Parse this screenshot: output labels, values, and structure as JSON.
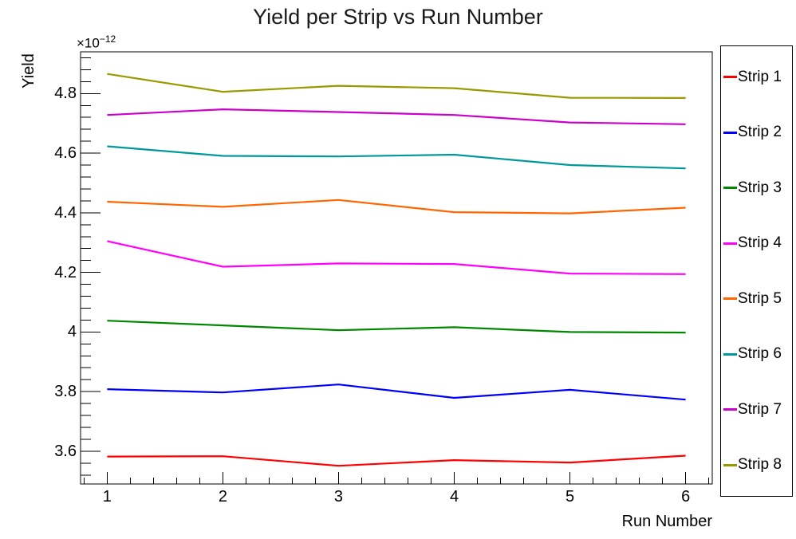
{
  "title": "Yield per Strip vs Run Number",
  "chart_data": {
    "type": "line",
    "title": "Yield per Strip vs Run Number",
    "xlabel": "Run Number",
    "ylabel": "Yield",
    "y_scale_label": {
      "mantissa": "×10",
      "exponent": "−12"
    },
    "grid": false,
    "legend_position": "right-outside",
    "x": [
      1,
      2,
      3,
      4,
      5,
      6
    ],
    "xlim": [
      0.77,
      6.23
    ],
    "ylim": [
      3.49,
      4.94
    ],
    "x_tick_labels": [
      "1",
      "2",
      "3",
      "4",
      "5",
      "6"
    ],
    "y_tick_values": [
      3.6,
      3.8,
      4.0,
      4.2,
      4.4,
      4.6,
      4.8
    ],
    "y_tick_labels": [
      "3.6",
      "3.8",
      "4",
      "4.2",
      "4.4",
      "4.6",
      "4.8"
    ],
    "x_minor_step": 0.2,
    "y_minor_step": 0.04,
    "values_unit": "×10⁻¹²",
    "series": [
      {
        "name": "Strip 1",
        "color": "#ff0000",
        "values": [
          3.582,
          3.583,
          3.551,
          3.57,
          3.562,
          3.585
        ]
      },
      {
        "name": "Strip 2",
        "color": "#0000ff",
        "values": [
          3.808,
          3.797,
          3.824,
          3.779,
          3.806,
          3.773
        ]
      },
      {
        "name": "Strip 3",
        "color": "#008800",
        "values": [
          4.038,
          4.022,
          4.006,
          4.016,
          4.0,
          3.998
        ]
      },
      {
        "name": "Strip 4",
        "color": "#ff00ff",
        "values": [
          4.305,
          4.219,
          4.23,
          4.228,
          4.196,
          4.194
        ]
      },
      {
        "name": "Strip 5",
        "color": "#ff6600",
        "values": [
          4.437,
          4.42,
          4.443,
          4.402,
          4.398,
          4.417
        ]
      },
      {
        "name": "Strip 6",
        "color": "#009999",
        "values": [
          4.623,
          4.591,
          4.589,
          4.595,
          4.56,
          4.549
        ]
      },
      {
        "name": "Strip 7",
        "color": "#cc00cc",
        "values": [
          4.728,
          4.747,
          4.738,
          4.728,
          4.703,
          4.697
        ]
      },
      {
        "name": "Strip 8",
        "color": "#999900",
        "values": [
          4.866,
          4.806,
          4.826,
          4.818,
          4.786,
          4.785
        ]
      }
    ]
  }
}
